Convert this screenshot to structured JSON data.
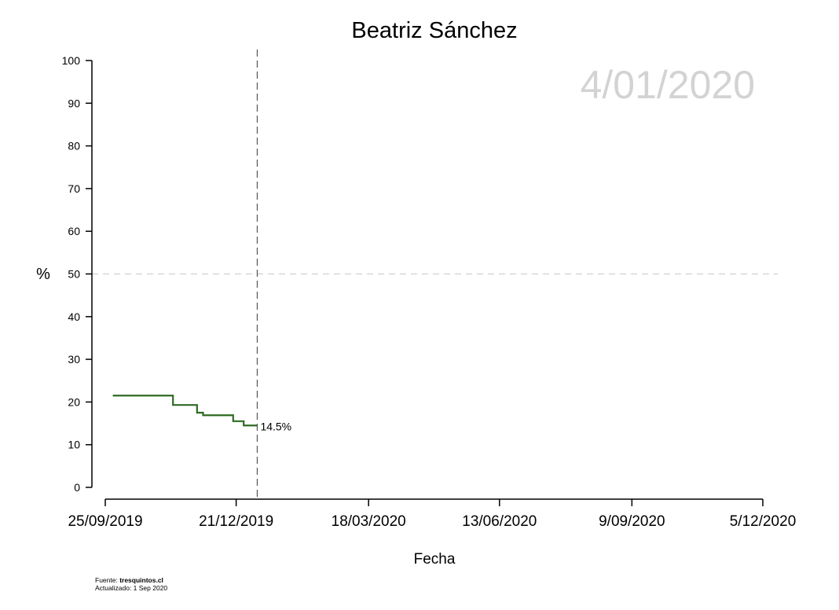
{
  "chart_data": {
    "type": "line",
    "title": "Beatriz Sánchez",
    "xlabel": "Fecha",
    "ylabel": "%",
    "ylim": [
      0,
      100
    ],
    "yticks": [
      0,
      10,
      20,
      30,
      40,
      50,
      60,
      70,
      80,
      90,
      100
    ],
    "xlim_days": [
      0,
      437
    ],
    "xticks": [
      {
        "day": 0,
        "label": "25/09/2019"
      },
      {
        "day": 87,
        "label": "21/12/2019"
      },
      {
        "day": 175,
        "label": "18/03/2020"
      },
      {
        "day": 262,
        "label": "13/06/2020"
      },
      {
        "day": 350,
        "label": "9/09/2020"
      },
      {
        "day": 437,
        "label": "5/12/2020"
      }
    ],
    "reference_line_y": 50,
    "current_date": {
      "day": 101,
      "label": "4/01/2020"
    },
    "series": [
      {
        "name": "Beatriz Sánchez",
        "color": "#2e6b22",
        "step": true,
        "points": [
          {
            "day": 5,
            "value": 21.5
          },
          {
            "day": 45,
            "value": 19.3
          },
          {
            "day": 61,
            "value": 17.5
          },
          {
            "day": 65,
            "value": 16.9
          },
          {
            "day": 85,
            "value": 15.5
          },
          {
            "day": 92,
            "value": 14.5
          },
          {
            "day": 101,
            "value": 14.5
          }
        ],
        "end_label": "14.5%"
      }
    ]
  },
  "footer": {
    "source_prefix": "Fuente: ",
    "source_site": "tresquintos.cl",
    "updated": "Actualizado: 1 Sep 2020"
  }
}
